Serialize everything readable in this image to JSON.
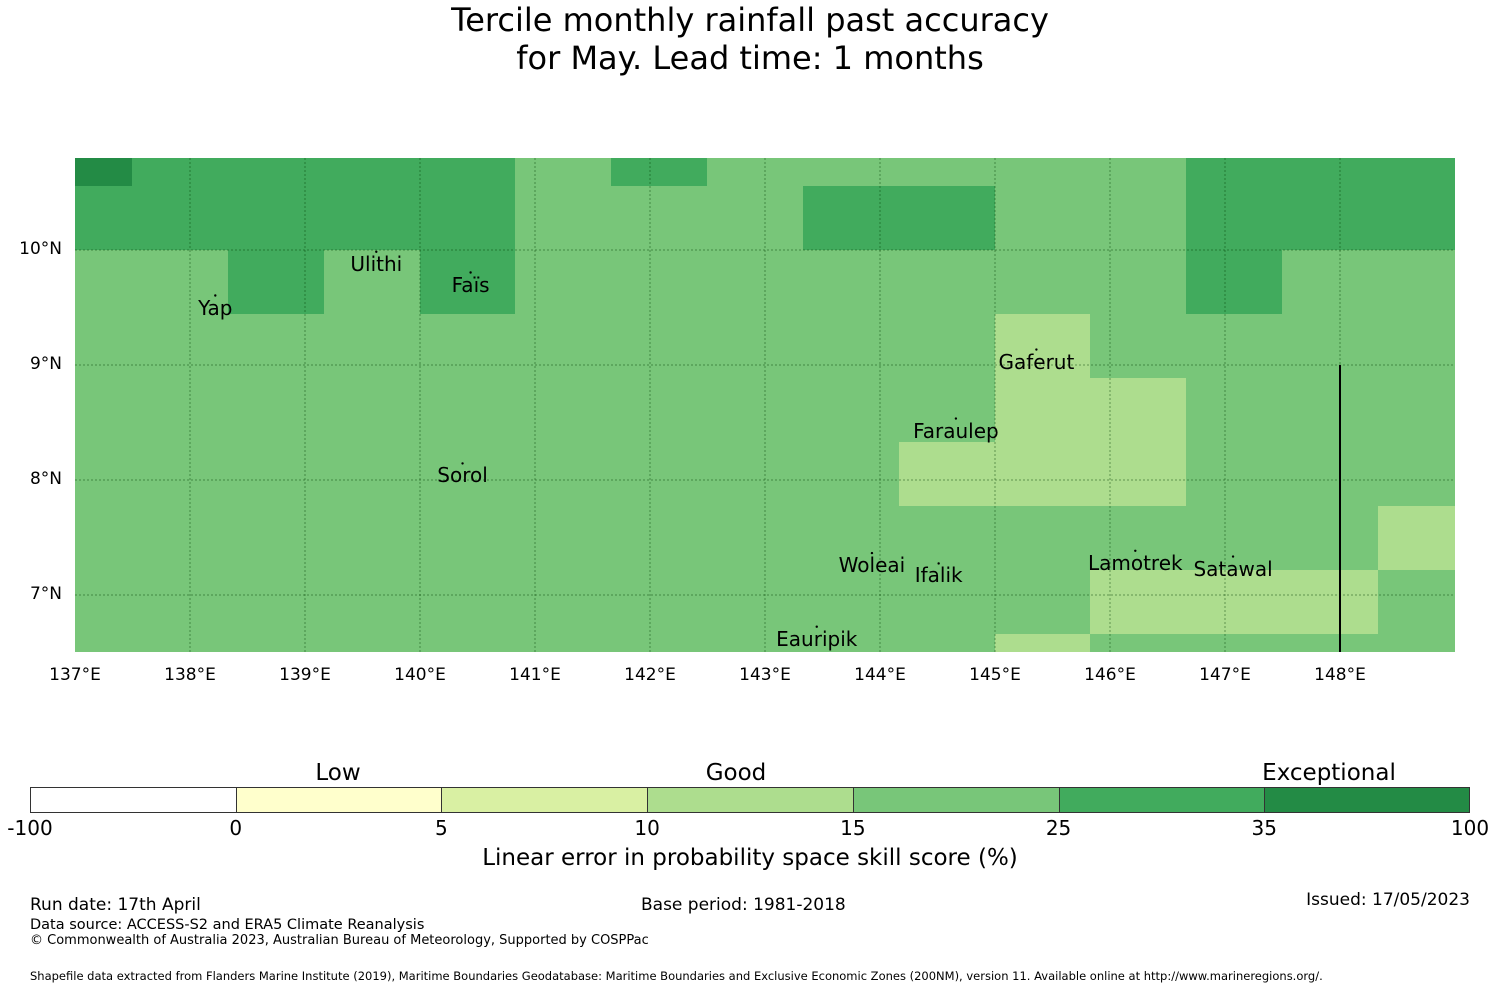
{
  "title": {
    "line1": "Tercile monthly rainfall past accuracy",
    "line2": "for May. Lead time: 1 months"
  },
  "map": {
    "lon_labels": [
      "137°E",
      "138°E",
      "139°E",
      "140°E",
      "141°E",
      "142°E",
      "143°E",
      "144°E",
      "145°E",
      "146°E",
      "147°E",
      "148°E"
    ],
    "lat_labels": [
      "10°N",
      "9°N",
      "8°N",
      "7°N"
    ],
    "islands": [
      {
        "name": "Ulithi",
        "lon": 139.62,
        "lat": 9.88
      },
      {
        "name": "Faïs",
        "lon": 140.44,
        "lat": 9.7
      },
      {
        "name": "Yap",
        "lon": 138.22,
        "lat": 9.5
      },
      {
        "name": "Gaferut",
        "lon": 145.36,
        "lat": 9.03
      },
      {
        "name": "Faraulep",
        "lon": 144.66,
        "lat": 8.43
      },
      {
        "name": "Sorol",
        "lon": 140.37,
        "lat": 8.04
      },
      {
        "name": "Woleai",
        "lon": 143.93,
        "lat": 7.26
      },
      {
        "name": "Ifalik",
        "lon": 144.51,
        "lat": 7.17
      },
      {
        "name": "Lamotrek",
        "lon": 146.22,
        "lat": 7.28
      },
      {
        "name": "Satawal",
        "lon": 147.07,
        "lat": 7.23
      },
      {
        "name": "Eauripik",
        "lon": 143.45,
        "lat": 6.62
      }
    ],
    "colors": {
      "gt35": "#238b45",
      "c25_35": "#41ab5d",
      "c15_25": "#78c679",
      "c10_15": "#addd8e",
      "c5_10": "#d9f0a3",
      "c0_5": "#ffffcc",
      "neg": "#ffffff"
    }
  },
  "colorbar": {
    "ticks": [
      "-100",
      "0",
      "5",
      "10",
      "15",
      "25",
      "35",
      "100"
    ],
    "colors": [
      "#ffffff",
      "#ffffcc",
      "#d9f0a3",
      "#addd8e",
      "#78c679",
      "#41ab5d",
      "#238b45"
    ],
    "categories": [
      "Low",
      "Good",
      "Exceptional"
    ],
    "label": "Linear error in probability space skill score (%)"
  },
  "footer": {
    "run_date": "Run date: 17th April",
    "base_period": "Base period: 1981-2018",
    "issued": "Issued: 17/05/2023",
    "data_source": "Data source: ACCESS-S2 and ERA5 Climate Reanalysis",
    "copyright": "© Commonwealth of Australia 2023, Australian Bureau of Meteorology, Supported by COSPPac",
    "shapefile": "Shapefile data extracted from Flanders Marine Institute (2019), Maritime Boundaries Geodatabase: Maritime Boundaries and Exclusive Economic Zones (200NM), version 11. Available online at http://www.marineregions.org/."
  }
}
